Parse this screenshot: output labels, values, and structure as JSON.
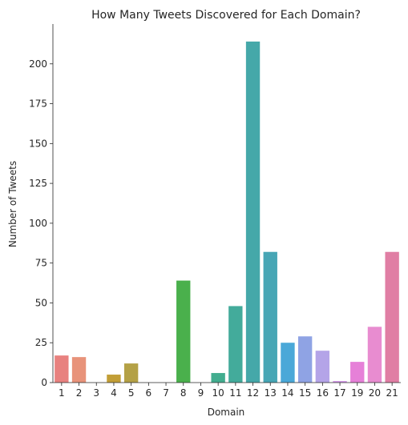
{
  "chart_data": {
    "type": "bar",
    "title": "How Many Tweets Discovered for Each Domain?",
    "xlabel": "Domain",
    "ylabel": "Number of Tweets",
    "categories": [
      "1",
      "2",
      "3",
      "4",
      "5",
      "6",
      "7",
      "8",
      "9",
      "10",
      "11",
      "12",
      "13",
      "14",
      "15",
      "16",
      "17",
      "19",
      "20",
      "21"
    ],
    "values": [
      17,
      16,
      0,
      5,
      12,
      0,
      0,
      64,
      0,
      6,
      48,
      214,
      82,
      25,
      29,
      20,
      1,
      13,
      35,
      82
    ],
    "colors": [
      "#e8817f",
      "#e8937a",
      "#d29a42",
      "#c29e36",
      "#b4a146",
      "#9fa73b",
      "#86ad3c",
      "#4ab04c",
      "#40ae79",
      "#42ad8f",
      "#43ab9b",
      "#45a8a9",
      "#47a6b5",
      "#4aa8d8",
      "#8fa3e4",
      "#b4a4e8",
      "#d49be8",
      "#e680d8",
      "#e88cd0",
      "#e07ea4"
    ],
    "ylim": [
      0,
      225
    ],
    "yticks": [
      0,
      25,
      50,
      75,
      100,
      125,
      150,
      175,
      200
    ],
    "grid": false,
    "legend": "none"
  }
}
